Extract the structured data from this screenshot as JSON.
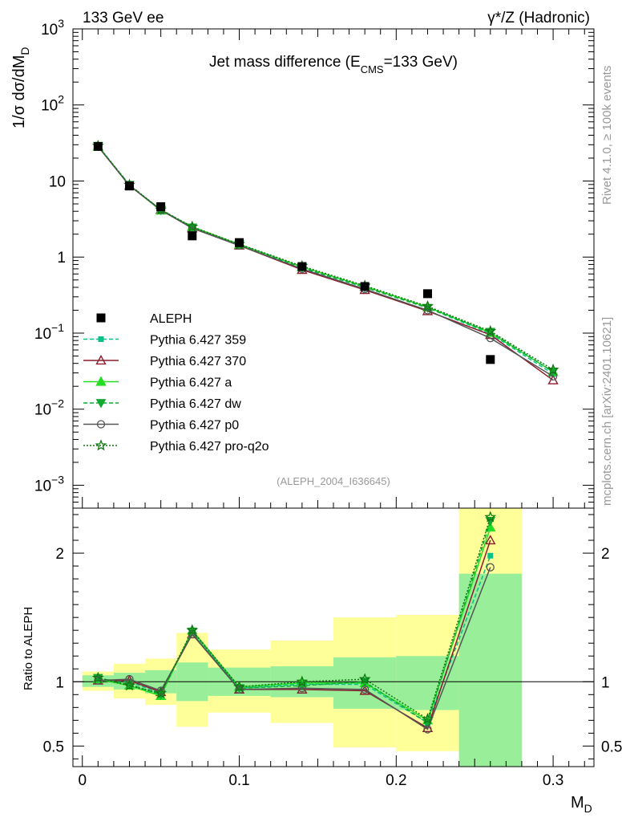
{
  "header": {
    "left": "133 GeV ee",
    "right": "γ*/Z (Hadronic)",
    "title_main": "Jet mass difference (E",
    "title_sub": "CMS",
    "title_end": "=133 GeV)",
    "analysis_id": "(ALEPH_2004_I636645)",
    "side_rivet": "Rivet 4.1.0, ≥ 100k events",
    "side_mcplots": "mcplots.cern.ch [arXiv:2401.10621]"
  },
  "axes": {
    "main_ylabel": "1/σ  dσ/dM",
    "main_ylabel_sub": "D",
    "ratio_ylabel": "Ratio to ALEPH",
    "xlabel": "M",
    "xlabel_sub": "D"
  },
  "chart_data": {
    "type": "line",
    "main": {
      "yscale": "log",
      "ylim": [
        0.0005,
        1000
      ],
      "xlim": [
        -0.006,
        0.326
      ],
      "ytick_labels": [
        {
          "v": 1000,
          "base": "10",
          "exp": "3"
        },
        {
          "v": 100,
          "base": "10",
          "exp": "2"
        },
        {
          "v": 10,
          "base": "10",
          "exp": ""
        },
        {
          "v": 1,
          "base": "1",
          "exp": ""
        },
        {
          "v": 0.1,
          "base": "10",
          "exp": "−1"
        },
        {
          "v": 0.01,
          "base": "10",
          "exp": "−2"
        },
        {
          "v": 0.001,
          "base": "10",
          "exp": "−3"
        }
      ]
    },
    "ratio": {
      "ylim": [
        0.34,
        2.35
      ],
      "ytick_labels": [
        {
          "v": 0.5,
          "label": "0.5"
        },
        {
          "v": 1,
          "label": "1"
        },
        {
          "v": 2,
          "label": "2"
        }
      ]
    },
    "xtick_labels": [
      {
        "v": 0,
        "label": "0"
      },
      {
        "v": 0.1,
        "label": "0.1"
      },
      {
        "v": 0.2,
        "label": "0.2"
      },
      {
        "v": 0.3,
        "label": "0.3"
      }
    ],
    "bins": [
      {
        "lo": 0.0,
        "hi": 0.02,
        "x": 0.01
      },
      {
        "lo": 0.02,
        "hi": 0.04,
        "x": 0.03
      },
      {
        "lo": 0.04,
        "hi": 0.06,
        "x": 0.05
      },
      {
        "lo": 0.06,
        "hi": 0.08,
        "x": 0.07
      },
      {
        "lo": 0.08,
        "hi": 0.12,
        "x": 0.1
      },
      {
        "lo": 0.12,
        "hi": 0.16,
        "x": 0.14
      },
      {
        "lo": 0.16,
        "hi": 0.2,
        "x": 0.18
      },
      {
        "lo": 0.2,
        "hi": 0.24,
        "x": 0.22
      },
      {
        "lo": 0.24,
        "hi": 0.28,
        "x": 0.26
      }
    ],
    "band_inner": [
      [
        0.96,
        1.05
      ],
      [
        0.94,
        1.07
      ],
      [
        0.91,
        1.09
      ],
      [
        0.85,
        1.15
      ],
      [
        0.89,
        1.11
      ],
      [
        0.88,
        1.12
      ],
      [
        0.79,
        1.19
      ],
      [
        0.78,
        1.2
      ],
      [
        0.34,
        1.84
      ]
    ],
    "band_outer": [
      [
        0.93,
        1.08
      ],
      [
        0.87,
        1.14
      ],
      [
        0.82,
        1.18
      ],
      [
        0.65,
        1.38
      ],
      [
        0.76,
        1.25
      ],
      [
        0.68,
        1.32
      ],
      [
        0.49,
        1.5
      ],
      [
        0.46,
        1.52
      ],
      [
        0.34,
        2.35
      ]
    ],
    "data": {
      "name": "ALEPH",
      "x": [
        0.01,
        0.03,
        0.05,
        0.07,
        0.1,
        0.14,
        0.18,
        0.22,
        0.26
      ],
      "y": [
        28.5,
        8.6,
        4.6,
        1.9,
        1.55,
        0.75,
        0.41,
        0.33,
        0.045
      ]
    },
    "series": [
      {
        "name": "Pythia 6.427 359",
        "color": "#0abf8a",
        "dash": "5,3",
        "marker": "square",
        "x": [
          0.01,
          0.03,
          0.05,
          0.07,
          0.1,
          0.14,
          0.18,
          0.22,
          0.26,
          0.3
        ],
        "main": [
          28.8,
          8.8,
          4.2,
          2.5,
          1.45,
          0.72,
          0.4,
          0.215,
          0.098,
          0.029
        ],
        "ratio": [
          1.02,
          1.0,
          0.91,
          1.38,
          0.95,
          0.98,
          0.98,
          0.68,
          1.98
        ]
      },
      {
        "name": "Pythia 6.427 370",
        "color": "#8a1c2c",
        "dash": "",
        "marker": "triangle-open",
        "x": [
          0.01,
          0.03,
          0.05,
          0.07,
          0.1,
          0.14,
          0.18,
          0.22,
          0.26,
          0.3
        ],
        "main": [
          28.6,
          8.7,
          4.2,
          2.4,
          1.42,
          0.68,
          0.37,
          0.195,
          0.095,
          0.024
        ],
        "ratio": [
          1.01,
          1.01,
          0.92,
          1.37,
          0.94,
          0.94,
          0.93,
          0.64,
          2.1
        ]
      },
      {
        "name": "Pythia 6.427 a",
        "color": "#22dd22",
        "dash": "",
        "marker": "triangle",
        "x": [
          0.01,
          0.03,
          0.05,
          0.07,
          0.1,
          0.14,
          0.18,
          0.22,
          0.26,
          0.3
        ],
        "main": [
          28.7,
          8.8,
          4.1,
          2.5,
          1.47,
          0.74,
          0.41,
          0.22,
          0.101,
          0.031
        ],
        "ratio": [
          1.02,
          0.97,
          0.89,
          1.4,
          0.96,
          0.99,
          0.99,
          0.7,
          2.2
        ]
      },
      {
        "name": "Pythia 6.427 dw",
        "color": "#11aa33",
        "dash": "5,3",
        "marker": "triangle-down",
        "x": [
          0.01,
          0.03,
          0.05,
          0.07,
          0.1,
          0.14,
          0.18,
          0.22,
          0.26,
          0.3
        ],
        "main": [
          28.9,
          8.9,
          4.15,
          2.45,
          1.46,
          0.73,
          0.4,
          0.215,
          0.104,
          0.031
        ],
        "ratio": [
          1.03,
          0.98,
          0.9,
          1.39,
          0.95,
          0.97,
          1.0,
          0.68,
          2.25
        ]
      },
      {
        "name": "Pythia 6.427 p0",
        "color": "#555555",
        "dash": "",
        "marker": "circle-open",
        "x": [
          0.01,
          0.03,
          0.05,
          0.07,
          0.1,
          0.14,
          0.18,
          0.22,
          0.26,
          0.3
        ],
        "main": [
          28.5,
          8.7,
          4.15,
          2.4,
          1.42,
          0.7,
          0.38,
          0.2,
          0.086,
          0.027
        ],
        "ratio": [
          1.01,
          1.02,
          0.93,
          1.37,
          0.94,
          0.95,
          0.94,
          0.63,
          1.89
        ]
      },
      {
        "name": "Pythia 6.427 pro-q2o",
        "color": "#117711",
        "dash": "2,2",
        "marker": "star-open",
        "x": [
          0.01,
          0.03,
          0.05,
          0.07,
          0.1,
          0.14,
          0.18,
          0.22,
          0.26,
          0.3
        ],
        "main": [
          29.0,
          8.9,
          4.2,
          2.5,
          1.48,
          0.76,
          0.42,
          0.225,
          0.106,
          0.033
        ],
        "ratio": [
          1.03,
          0.97,
          0.91,
          1.4,
          0.96,
          1.0,
          1.02,
          0.71,
          2.28
        ]
      }
    ]
  }
}
